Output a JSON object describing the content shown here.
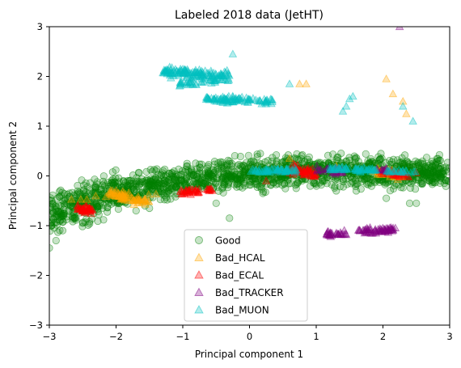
{
  "chart_data": {
    "type": "scatter",
    "title": "Labeled 2018 data (JetHT)",
    "xlabel": "Principal component 1",
    "ylabel": "Principal component 2",
    "xlim": [
      -3,
      3
    ],
    "ylim": [
      -3,
      3
    ],
    "xticks": [
      -3,
      -2,
      -1,
      0,
      1,
      2,
      3
    ],
    "xtick_labels": [
      "−3",
      "−2",
      "−1",
      "0",
      "1",
      "2",
      "3"
    ],
    "yticks": [
      -3,
      -2,
      -1,
      0,
      1,
      2,
      3
    ],
    "ytick_labels": [
      "−3",
      "−2",
      "−1",
      "0",
      "1",
      "2",
      "3"
    ],
    "grid": false,
    "legend_position": "lower-center",
    "series": [
      {
        "name": "Good",
        "marker": "circle",
        "color": "#008000",
        "band": {
          "x_range": [
            -3,
            3
          ],
          "center_at": [
            [
              -3,
              -0.75
            ],
            [
              -2,
              -0.35
            ],
            [
              -1,
              -0.1
            ],
            [
              0,
              0.05
            ],
            [
              1,
              0.1
            ],
            [
              2,
              0.1
            ],
            [
              3,
              0.05
            ]
          ],
          "thickness": 0.45
        },
        "points": [
          [
            -2.9,
            -1.3
          ],
          [
            -2.8,
            -1.1
          ],
          [
            -2.5,
            -0.95
          ],
          [
            -2.6,
            -0.85
          ],
          [
            -1.7,
            -0.7
          ],
          [
            -1.5,
            -0.65
          ],
          [
            -0.5,
            -0.55
          ],
          [
            -0.3,
            -0.85
          ],
          [
            0.2,
            -0.35
          ],
          [
            0.7,
            -0.25
          ],
          [
            1.3,
            -0.3
          ],
          [
            1.6,
            -0.3
          ],
          [
            2.05,
            -0.45
          ],
          [
            2.4,
            -0.55
          ],
          [
            2.5,
            -0.55
          ],
          [
            -3,
            -1.45
          ],
          [
            -2.95,
            -0.55
          ]
        ]
      },
      {
        "name": "Bad_HCAL",
        "marker": "triangle",
        "color": "#ffa500",
        "clusters": [
          {
            "x_range": [
              -2.1,
              -1.5
            ],
            "center_at": [
              [
                -2.1,
                -0.3
              ],
              [
                -1.8,
                -0.45
              ],
              [
                -1.5,
                -0.55
              ]
            ],
            "thickness": 0.12,
            "n": 70
          },
          {
            "x_range": [
              1.85,
              2.3
            ],
            "center_at": [
              [
                1.85,
                0.1
              ],
              [
                2.3,
                0.0
              ]
            ],
            "thickness": 0.12,
            "n": 30
          },
          {
            "x_range": [
              -2.7,
              -1.2
            ],
            "center_at": [
              [
                -2.7,
                -0.45
              ],
              [
                -1.2,
                -0.3
              ]
            ],
            "thickness": 0.1,
            "n": 10
          }
        ],
        "points": [
          [
            0.75,
            1.85
          ],
          [
            0.85,
            1.85
          ],
          [
            2.05,
            1.95
          ],
          [
            2.15,
            1.65
          ],
          [
            2.3,
            1.5
          ],
          [
            2.35,
            1.25
          ],
          [
            0.6,
            0.35
          ],
          [
            1.3,
            0.2
          ]
        ]
      },
      {
        "name": "Bad_ECAL",
        "marker": "triangle",
        "color": "#ff0000",
        "clusters": [
          {
            "x_range": [
              -2.6,
              -2.35
            ],
            "center_at": [
              [
                -2.6,
                -0.62
              ],
              [
                -2.35,
                -0.7
              ]
            ],
            "thickness": 0.12,
            "n": 40
          },
          {
            "x_range": [
              -1.05,
              -0.75
            ],
            "center_at": [
              [
                -1.05,
                -0.33
              ],
              [
                -0.75,
                -0.3
              ]
            ],
            "thickness": 0.08,
            "n": 30
          },
          {
            "x_range": [
              0.6,
              1.0
            ],
            "center_at": [
              [
                0.6,
                0.15
              ],
              [
                1.0,
                0.05
              ]
            ],
            "thickness": 0.15,
            "n": 50
          },
          {
            "x_range": [
              -0.65,
              -0.55
            ],
            "center_at": [
              [
                -0.65,
                -0.28
              ],
              [
                -0.55,
                -0.28
              ]
            ],
            "thickness": 0.06,
            "n": 10
          },
          {
            "x_range": [
              1.95,
              2.5
            ],
            "center_at": [
              [
                1.95,
                0.05
              ],
              [
                2.5,
                0.0
              ]
            ],
            "thickness": 0.1,
            "n": 25
          }
        ],
        "points": [
          [
            0.25,
            -0.1
          ],
          [
            0.45,
            0.1
          ]
        ]
      },
      {
        "name": "Bad_TRACKER",
        "marker": "triangle",
        "color": "#800080",
        "clusters": [
          {
            "x_range": [
              1.0,
              1.4
            ],
            "center_at": [
              [
                1.0,
                0.12
              ],
              [
                1.4,
                0.1
              ]
            ],
            "thickness": 0.1,
            "n": 25
          },
          {
            "x_range": [
              1.6,
              2.2
            ],
            "center_at": [
              [
                1.6,
                -1.12
              ],
              [
                2.2,
                -1.08
              ]
            ],
            "thickness": 0.08,
            "n": 60
          },
          {
            "x_range": [
              1.15,
              1.45
            ],
            "center_at": [
              [
                1.15,
                -1.17
              ],
              [
                1.45,
                -1.15
              ]
            ],
            "thickness": 0.07,
            "n": 30
          },
          {
            "x_range": [
              1.9,
              2.1
            ],
            "center_at": [
              [
                1.9,
                0.12
              ],
              [
                2.1,
                0.12
              ]
            ],
            "thickness": 0.05,
            "n": 10
          }
        ],
        "points": [
          [
            2.25,
            3.0
          ]
        ]
      },
      {
        "name": "Bad_MUON",
        "marker": "triangle",
        "color": "#00bfbf",
        "clusters": [
          {
            "x_range": [
              -1.3,
              -0.3
            ],
            "center_at": [
              [
                -1.3,
                2.1
              ],
              [
                -0.3,
                2.0
              ]
            ],
            "thickness": 0.15,
            "n": 130
          },
          {
            "x_range": [
              -0.65,
              0.35
            ],
            "center_at": [
              [
                -0.65,
                1.55
              ],
              [
                0.35,
                1.5
              ]
            ],
            "thickness": 0.1,
            "n": 90
          },
          {
            "x_range": [
              0.0,
              0.7
            ],
            "center_at": [
              [
                0.0,
                0.1
              ],
              [
                0.7,
                0.12
              ]
            ],
            "thickness": 0.07,
            "n": 60
          },
          {
            "x_range": [
              1.2,
              1.9
            ],
            "center_at": [
              [
                1.2,
                0.15
              ],
              [
                1.9,
                0.12
              ]
            ],
            "thickness": 0.06,
            "n": 55
          },
          {
            "x_range": [
              2.0,
              2.5
            ],
            "center_at": [
              [
                2.0,
                0.1
              ],
              [
                2.5,
                0.08
              ]
            ],
            "thickness": 0.05,
            "n": 20
          },
          {
            "x_range": [
              -1.05,
              -0.5
            ],
            "center_at": [
              [
                -1.05,
                1.85
              ],
              [
                -0.5,
                1.9
              ]
            ],
            "thickness": 0.07,
            "n": 30
          }
        ],
        "points": [
          [
            -0.25,
            2.45
          ],
          [
            0.6,
            1.85
          ],
          [
            1.5,
            1.55
          ],
          [
            1.55,
            1.6
          ],
          [
            1.45,
            1.4
          ],
          [
            2.3,
            1.4
          ],
          [
            2.45,
            1.1
          ],
          [
            1.4,
            1.3
          ]
        ]
      }
    ]
  }
}
